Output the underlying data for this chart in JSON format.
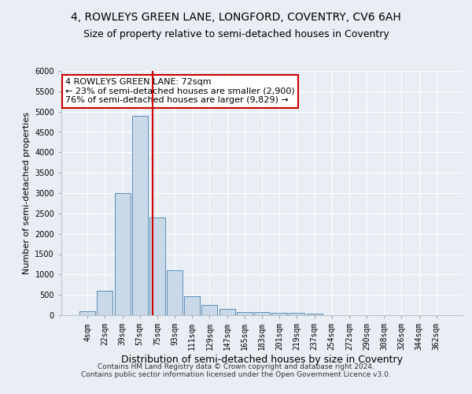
{
  "title": "4, ROWLEYS GREEN LANE, LONGFORD, COVENTRY, CV6 6AH",
  "subtitle": "Size of property relative to semi-detached houses in Coventry",
  "xlabel": "Distribution of semi-detached houses by size in Coventry",
  "ylabel": "Number of semi-detached properties",
  "footer": "Contains HM Land Registry data © Crown copyright and database right 2024.\nContains public sector information licensed under the Open Government Licence v3.0.",
  "bar_labels": [
    "4sqm",
    "22sqm",
    "39sqm",
    "57sqm",
    "75sqm",
    "93sqm",
    "111sqm",
    "129sqm",
    "147sqm",
    "165sqm",
    "183sqm",
    "201sqm",
    "219sqm",
    "237sqm",
    "254sqm",
    "272sqm",
    "290sqm",
    "308sqm",
    "326sqm",
    "344sqm",
    "362sqm"
  ],
  "bar_values": [
    100,
    600,
    3000,
    4900,
    2400,
    1100,
    470,
    250,
    150,
    75,
    75,
    50,
    50,
    30,
    0,
    0,
    0,
    0,
    0,
    0,
    0
  ],
  "bar_color": "#c9d9e8",
  "bar_edge_color": "#5b8db8",
  "background_color": "#e8eef4",
  "grid_color": "#ffffff",
  "annotation_text": "4 ROWLEYS GREEN LANE: 72sqm\n← 23% of semi-detached houses are smaller (2,900)\n76% of semi-detached houses are larger (9,829) →",
  "annotation_box_color": "#ffffff",
  "annotation_border_color": "#cc0000",
  "vline_color": "#cc0000",
  "vline_x_data": 3.75,
  "ylim": [
    0,
    6000
  ],
  "yticks": [
    0,
    500,
    1000,
    1500,
    2000,
    2500,
    3000,
    3500,
    4000,
    4500,
    5000,
    5500,
    6000
  ],
  "title_fontsize": 10,
  "subtitle_fontsize": 9,
  "xlabel_fontsize": 9,
  "ylabel_fontsize": 8,
  "tick_fontsize": 7,
  "annotation_fontsize": 8,
  "footer_fontsize": 6.5
}
